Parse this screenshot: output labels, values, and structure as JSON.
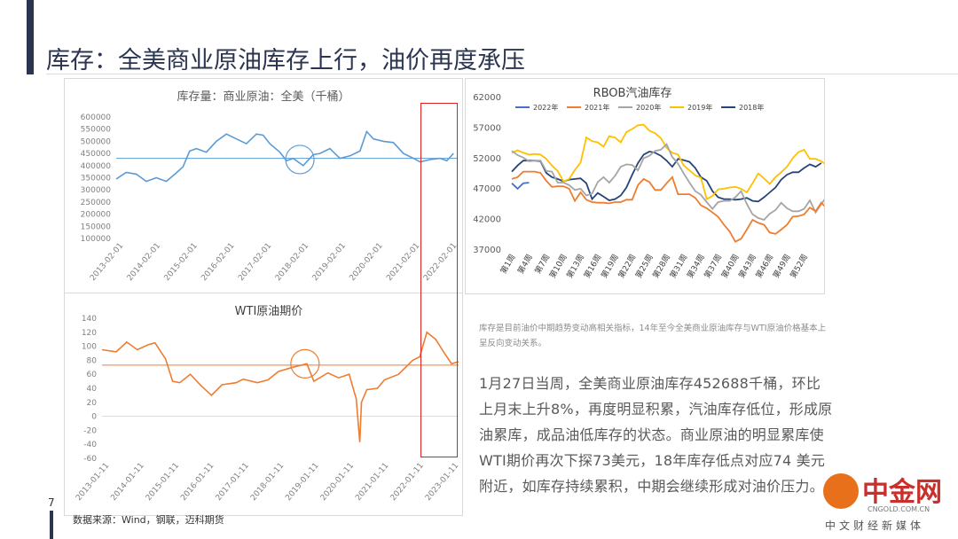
{
  "page": {
    "title": "库存：全美商业原油库存上行，油价再度承压",
    "page_number": "7",
    "source": "数据来源：Wind，钢联，迈科期货",
    "note": "库存是目前油价中期趋势变动高相关指标，14年至今全美商业原油库存与WTI原油价格基本上呈反向变动关系。",
    "body": "1月27日当周，全美商业原油库存452688千桶，环比上月末上升8%，再度明显积累，汽油库存低位，形成原油累库，成品油低库存的状态。商业原油的明显累库使WTI期价再次下探73美元，18年库存低点对应74 美元附近，如库存持续累积，中期会继续形成对油价压力。",
    "logo": {
      "name": "中金网",
      "url": "CNGOLD.COM.CN",
      "tagline": "中文财经新媒体"
    }
  },
  "colors": {
    "inventory": "#5b9bd5",
    "wti": "#ed7d31",
    "highlight": "#e02020",
    "title": "#2b3550"
  },
  "chart_data": [
    {
      "type": "line",
      "title": "库存量：商业原油：全美（千桶）",
      "ylim": [
        100000,
        600000
      ],
      "yticks": [
        "600000",
        "550000",
        "500000",
        "450000",
        "400000",
        "350000",
        "300000",
        "250000",
        "200000",
        "150000",
        "100000"
      ],
      "xticks": [
        "2013-02-01",
        "2014-02-01",
        "2015-02-01",
        "2016-02-01",
        "2017-02-01",
        "2018-02-01",
        "2019-02-01",
        "2020-02-01",
        "2021-02-01",
        "2022-02-01"
      ],
      "xlim": [
        2013.0,
        2023.2
      ],
      "reference_line": 430000,
      "series": [
        {
          "x": [
            2013.0,
            2013.3,
            2013.6,
            2013.9,
            2014.2,
            2014.5,
            2014.8,
            2015.0,
            2015.2,
            2015.4,
            2015.7,
            2016.0,
            2016.3,
            2016.6,
            2016.9,
            2017.2,
            2017.4,
            2017.6,
            2017.9,
            2018.1,
            2018.3,
            2018.6,
            2018.9,
            2019.1,
            2019.4,
            2019.7,
            2020.0,
            2020.3,
            2020.5,
            2020.7,
            2021.0,
            2021.3,
            2021.6,
            2021.9,
            2022.1,
            2022.4,
            2022.7,
            2022.9,
            2023.1
          ],
          "y": [
            345000,
            372000,
            365000,
            335000,
            350000,
            335000,
            370000,
            395000,
            460000,
            470000,
            455000,
            500000,
            530000,
            510000,
            490000,
            530000,
            525000,
            490000,
            455000,
            420000,
            430000,
            400000,
            445000,
            450000,
            470000,
            430000,
            440000,
            460000,
            540000,
            510000,
            500000,
            495000,
            450000,
            430000,
            415000,
            425000,
            430000,
            420000,
            450000
          ]
        }
      ]
    },
    {
      "type": "line",
      "title": "WTI原油期价",
      "ylim": [
        -60,
        140
      ],
      "yticks": [
        "140",
        "120",
        "100",
        "80",
        "60",
        "40",
        "20",
        "0",
        "-20",
        "-40",
        "-60"
      ],
      "xticks": [
        "2013-01-11",
        "2014-01-11",
        "2015-01-11",
        "2016-01-11",
        "2017-01-11",
        "2018-01-11",
        "2019-01-11",
        "2020-01-11",
        "2021-01-11",
        "2022-01-11",
        "2023-01-11"
      ],
      "xlim": [
        2013.0,
        2023.1
      ],
      "reference_line": 73,
      "series": [
        {
          "x": [
            2013.0,
            2013.4,
            2013.7,
            2014.0,
            2014.3,
            2014.5,
            2014.8,
            2015.0,
            2015.2,
            2015.5,
            2015.8,
            2016.1,
            2016.4,
            2016.8,
            2017.0,
            2017.4,
            2017.7,
            2018.0,
            2018.4,
            2018.8,
            2019.0,
            2019.4,
            2019.7,
            2020.0,
            2020.2,
            2020.3,
            2020.35,
            2020.5,
            2020.8,
            2021.0,
            2021.4,
            2021.8,
            2022.0,
            2022.2,
            2022.45,
            2022.7,
            2022.9,
            2023.1
          ],
          "y": [
            95,
            92,
            106,
            95,
            102,
            105,
            82,
            50,
            48,
            60,
            44,
            30,
            45,
            48,
            53,
            48,
            52,
            64,
            70,
            75,
            50,
            62,
            55,
            60,
            25,
            -37,
            20,
            38,
            40,
            52,
            60,
            80,
            85,
            120,
            110,
            90,
            75,
            78
          ]
        }
      ]
    },
    {
      "type": "line",
      "title": "RBOB汽油库存",
      "ylim": [
        37000,
        62000
      ],
      "yticks": [
        "62000",
        "57000",
        "52000",
        "47000",
        "42000",
        "37000"
      ],
      "xticks": [
        "第1周",
        "第4周",
        "第7周",
        "第10周",
        "第13周",
        "第16周",
        "第19周",
        "第22周",
        "第25周",
        "第28周",
        "第31周",
        "第34周",
        "第37周",
        "第40周",
        "第43周",
        "第46周",
        "第49周",
        "第52周"
      ],
      "series": [
        {
          "name": "2022年",
          "color": "#4472c4",
          "y": [
            47800,
            46900,
            47800,
            47900
          ]
        },
        {
          "name": "2021年",
          "color": "#ed7d31",
          "y": [
            48500,
            48800,
            49700,
            49700,
            49700,
            49500,
            48200,
            47200,
            47300,
            47300,
            46900,
            44900,
            46300,
            45100,
            44700,
            44600,
            44600,
            44500,
            44700,
            44700,
            45100,
            45100,
            47500,
            48500,
            48000,
            46700,
            46700,
            47800,
            48800,
            46000,
            46000,
            46000,
            45400,
            44200,
            43700,
            43000,
            42300,
            41000,
            39900,
            38200,
            38700,
            40200,
            41800,
            41300,
            41000,
            39700,
            39500,
            40200,
            41000,
            42300,
            42400,
            42700,
            43800,
            43200,
            44600,
            43600,
            45900
          ]
        },
        {
          "name": "2020年",
          "color": "#a5a5a5",
          "y": [
            53100,
            52400,
            52000,
            51400,
            51500,
            51500,
            49800,
            49700,
            47900,
            47900,
            47500,
            46700,
            46900,
            45800,
            46100,
            48000,
            48800,
            47900,
            49000,
            50500,
            50900,
            50800,
            49900,
            51900,
            52300,
            53100,
            53300,
            54200,
            52100,
            51000,
            49400,
            47900,
            46500,
            45900,
            44700,
            43600,
            44700,
            44900,
            44900,
            45500,
            46500,
            44400,
            42700,
            42100,
            41800,
            42800,
            43400,
            44600,
            43700,
            43200,
            43200,
            43600,
            45000,
            43000,
            44400,
            45700
          ]
        },
        {
          "name": "2019年",
          "color": "#ffc000",
          "y": [
            52800,
            53200,
            52800,
            52500,
            52600,
            52500,
            51800,
            50700,
            49800,
            48100,
            48500,
            50000,
            51200,
            55300,
            54700,
            54500,
            53800,
            55500,
            55300,
            54500,
            56200,
            56700,
            57300,
            57400,
            56400,
            56000,
            55200,
            53600,
            52800,
            52500,
            50700,
            49900,
            49100,
            48700,
            45200,
            45700,
            46800,
            46900,
            47100,
            47200,
            46900,
            46300,
            47800,
            49400,
            48600,
            47700,
            48800,
            49600,
            50500,
            51900,
            52900,
            53300,
            51800,
            51800,
            51400,
            50700
          ]
        },
        {
          "name": "2018年",
          "color": "#264478",
          "y": [
            49700,
            50700,
            51500,
            51500,
            51500,
            51400,
            49500,
            48800,
            48500,
            48100,
            48400,
            48500,
            48600,
            47800,
            45200,
            46200,
            45600,
            45000,
            45200,
            45800,
            47100,
            49200,
            51100,
            52500,
            53000,
            52800,
            52300,
            51500,
            50500,
            51800,
            51600,
            51300,
            50300,
            48800,
            48200,
            46500,
            45500,
            45200,
            45200,
            45100,
            45200,
            45400,
            44900,
            44800,
            45500,
            46300,
            47100,
            48400,
            49200,
            49600,
            49600,
            50300,
            50900,
            50500,
            51100
          ]
        }
      ]
    }
  ]
}
